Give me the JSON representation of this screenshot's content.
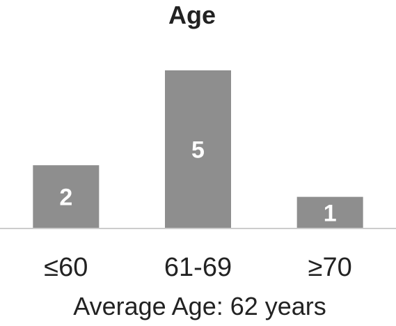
{
  "chart_data": {
    "type": "bar",
    "title": "Age",
    "categories": [
      "≤60",
      "61-69",
      "≥70"
    ],
    "values": [
      2,
      5,
      1
    ],
    "data_labels": [
      "2",
      "5",
      "1"
    ],
    "xlabel": "",
    "ylabel": "",
    "ylim": [
      0,
      5
    ],
    "grid": false,
    "legend": "none",
    "bar_color": "#8e8e8e",
    "baseline_color": "#cccccc",
    "footnote": "Average Age: 62 years"
  }
}
